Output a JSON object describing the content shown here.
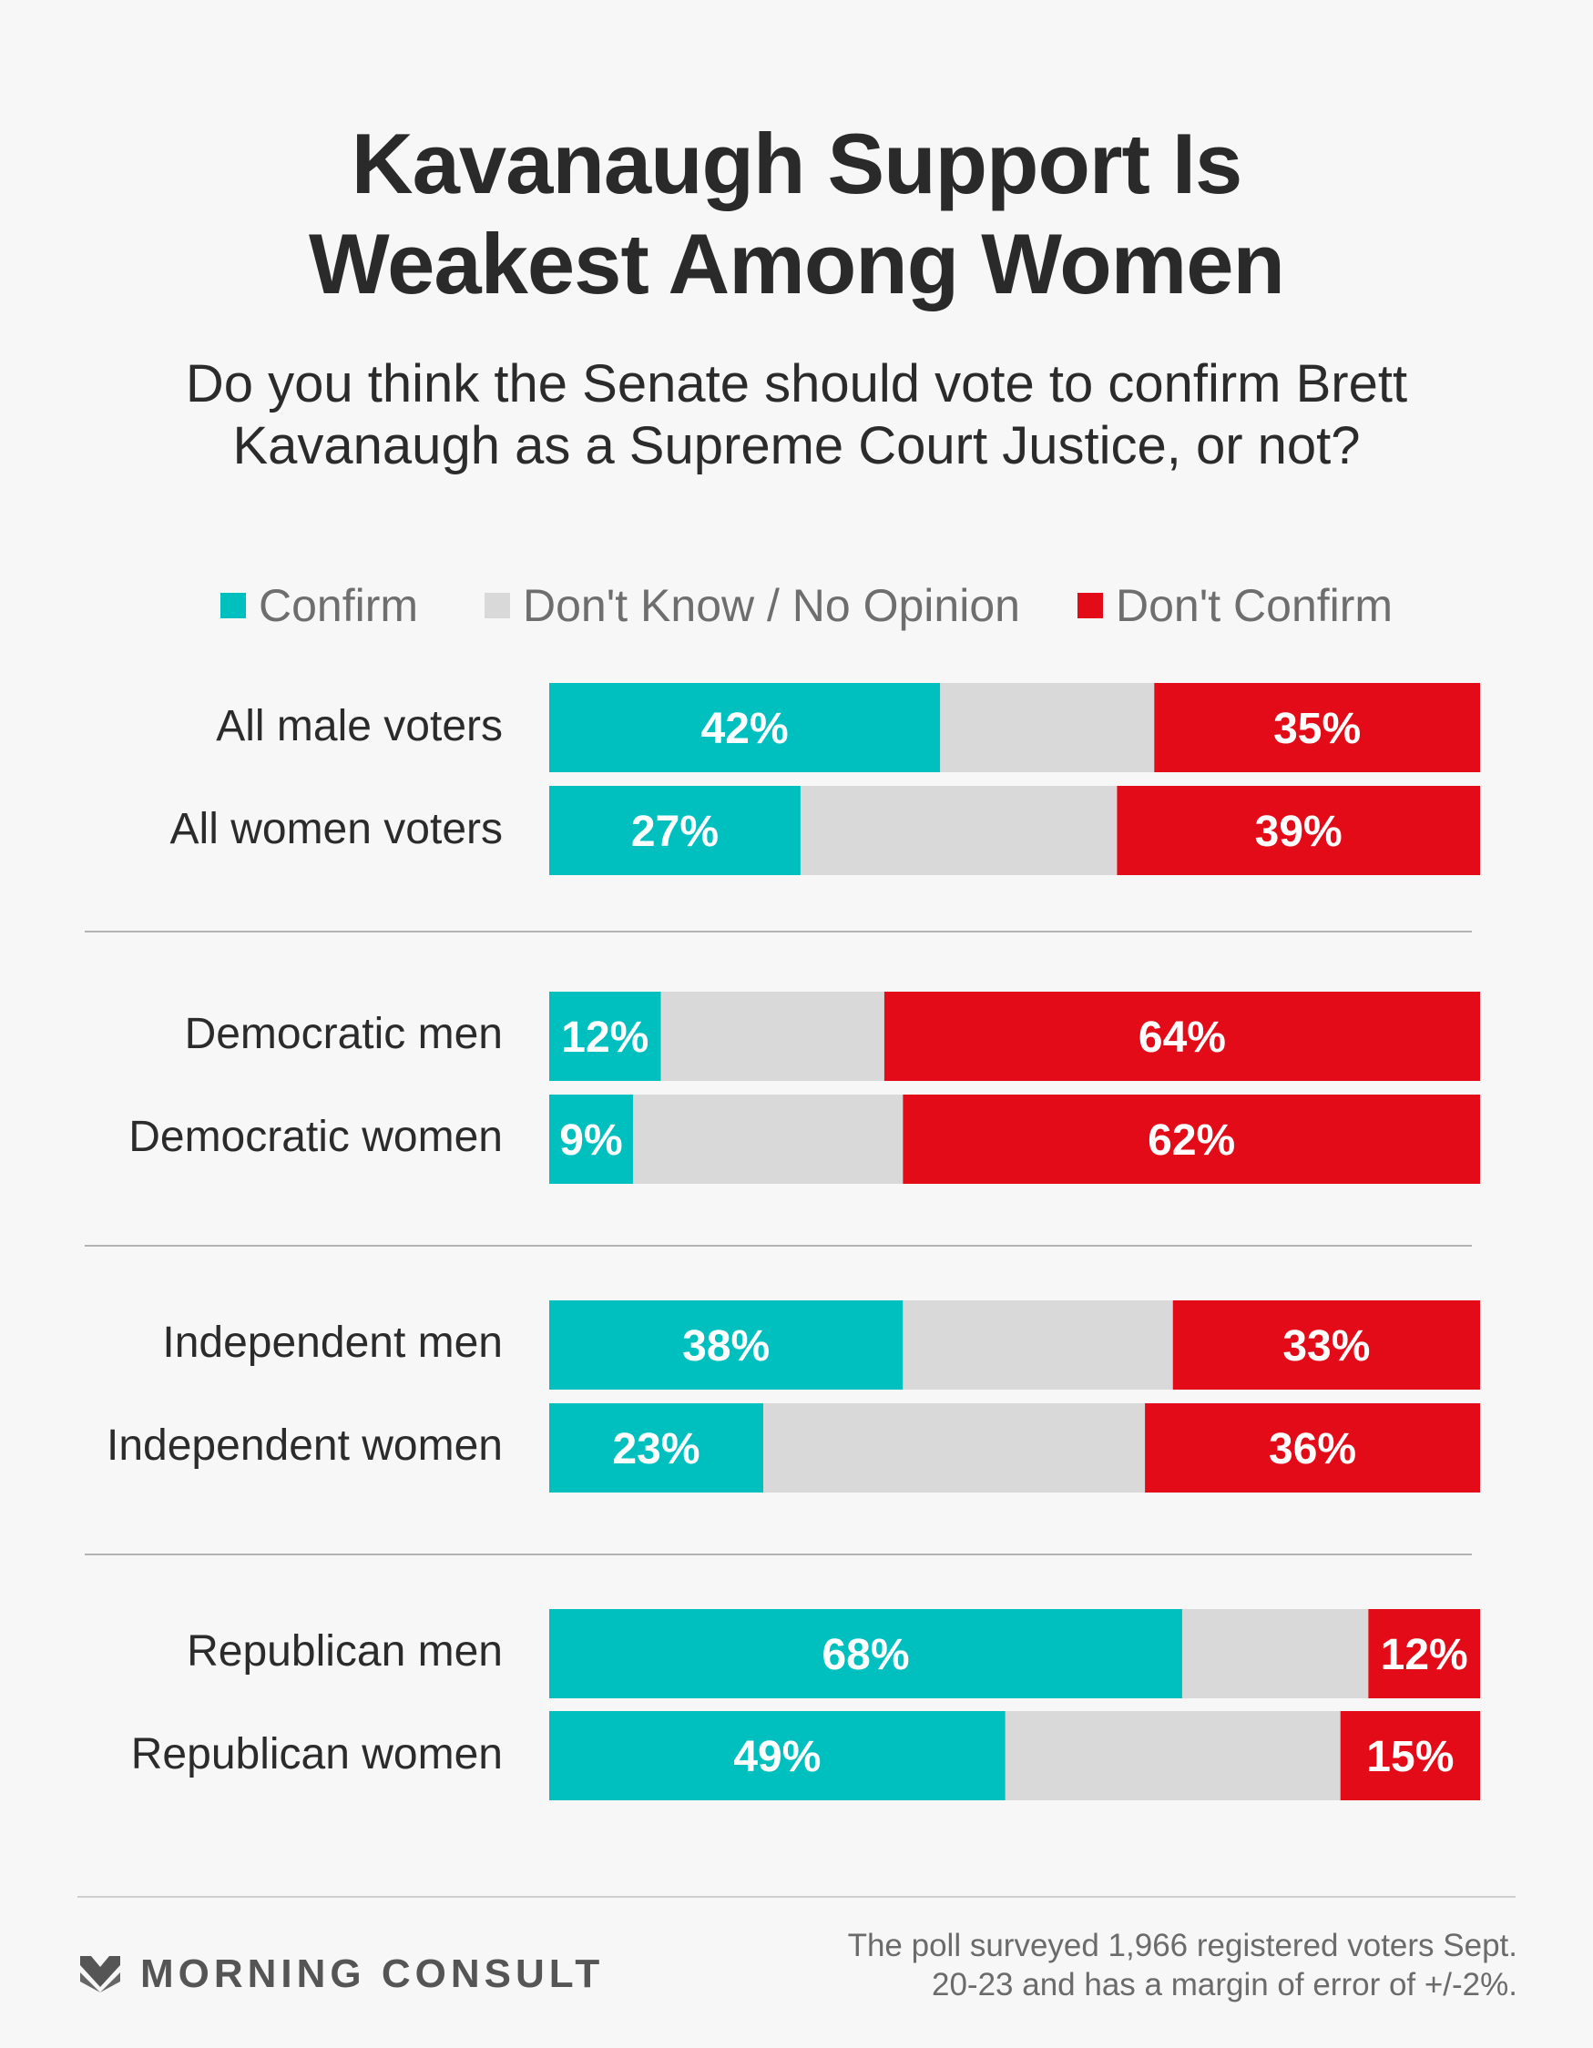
{
  "colors": {
    "confirm": "#00bfbf",
    "dont_know": "#d9d9d9",
    "dont_confirm": "#e30b17",
    "background": "#f7f7f7"
  },
  "title": {
    "line1": "Kavanaugh Support Is",
    "line2": "Weakest Among Women"
  },
  "subtitle": {
    "line1": "Do you think the Senate should vote to confirm Brett",
    "line2": "Kavanaugh as a Supreme Court Justice, or not?"
  },
  "legend": {
    "confirm": "Confirm",
    "dont_know": "Don't Know / No Opinion",
    "dont_confirm": "Don't Confirm"
  },
  "rows": [
    {
      "label": "All male voters",
      "confirm": 42,
      "dont_confirm": 35
    },
    {
      "label": "All women voters",
      "confirm": 27,
      "dont_confirm": 39
    },
    {
      "label": "Democratic men",
      "confirm": 12,
      "dont_confirm": 64
    },
    {
      "label": "Democratic women",
      "confirm": 9,
      "dont_confirm": 62
    },
    {
      "label": "Independent men",
      "confirm": 38,
      "dont_confirm": 33
    },
    {
      "label": "Independent women",
      "confirm": 23,
      "dont_confirm": 36
    },
    {
      "label": "Republican men",
      "confirm": 68,
      "dont_confirm": 12
    },
    {
      "label": "Republican women",
      "confirm": 49,
      "dont_confirm": 15
    }
  ],
  "chart_data": {
    "type": "bar",
    "orientation": "horizontal",
    "stacked": true,
    "title": "Kavanaugh Support Is Weakest Among Women",
    "subtitle": "Do you think the Senate should vote to confirm Brett Kavanaugh as a Supreme Court Justice, or not?",
    "categories": [
      "All male voters",
      "All women voters",
      "Democratic men",
      "Democratic women",
      "Independent men",
      "Independent women",
      "Republican men",
      "Republican women"
    ],
    "series": [
      {
        "name": "Confirm",
        "values": [
          42,
          27,
          12,
          9,
          38,
          23,
          68,
          49
        ]
      },
      {
        "name": "Don't Know / No Opinion",
        "values": [
          23,
          34,
          24,
          29,
          29,
          41,
          20,
          36
        ]
      },
      {
        "name": "Don't Confirm",
        "values": [
          35,
          39,
          64,
          62,
          33,
          36,
          12,
          15
        ]
      }
    ],
    "xlim": [
      0,
      100
    ],
    "legend": "top"
  },
  "footer": {
    "logo_text": "MORNING CONSULT",
    "note_line1": "The poll surveyed 1,966 registered voters Sept.",
    "note_line2": "20-23 and has a margin of error of +/-2%."
  }
}
